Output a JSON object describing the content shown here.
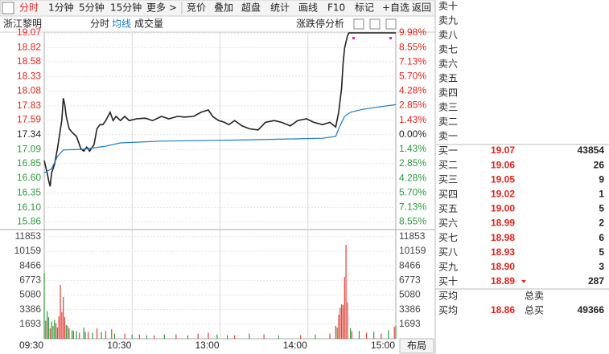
{
  "toolbar": [
    "分时",
    "1分钟",
    "5分钟",
    "15分钟",
    "更多 >",
    "竞价",
    "叠加",
    "超盘",
    "统计",
    "画线",
    "F10",
    "标记",
    "+自选",
    "返回"
  ],
  "panel_button": "涨跌停分析",
  "layout_button": "布局",
  "chart_data": {
    "type": "line",
    "title": "浙江黎明",
    "xlim": [
      0,
      240
    ],
    "xticks": [
      {
        "value": 0,
        "label": "09:30"
      },
      {
        "value": 60,
        "label": "10:30"
      },
      {
        "value": 120,
        "label": "13:00"
      },
      {
        "value": 180,
        "label": "14:00"
      },
      {
        "value": 240,
        "label": "15:00"
      }
    ],
    "ylim": [
      15.74,
      19.07
    ],
    "yticks": [
      19.07,
      18.82,
      18.58,
      18.33,
      18.08,
      17.83,
      17.59,
      17.34,
      17.09,
      16.85,
      {
        "value": 16.6,
        "label": "16.60"
      },
      16.35,
      {
        "value": 16.1,
        "label": "16.10"
      },
      15.86
    ],
    "y2lim": [
      -9.23,
      9.98
    ],
    "y2ticks": [
      {
        "value": 9.98,
        "label": "9.98%"
      },
      {
        "value": 8.55,
        "label": "8.55%"
      },
      {
        "value": 7.13,
        "label": "7.13%"
      },
      {
        "value": 5.7,
        "label": "5.70%"
      },
      {
        "value": 4.28,
        "label": "4.28%"
      },
      {
        "value": 2.85,
        "label": "2.85%"
      },
      {
        "value": 1.43,
        "label": "1.43%"
      },
      {
        "value": 0,
        "label": "0.00%"
      },
      {
        "value": -1.43,
        "label": "1.43%"
      },
      {
        "value": -2.85,
        "label": "2.85%"
      },
      {
        "value": -4.28,
        "label": "4.28%"
      },
      {
        "value": -5.7,
        "label": "5.70%"
      },
      {
        "value": -7.13,
        "label": "7.13%"
      },
      {
        "value": -8.55,
        "label": "8.55%"
      }
    ],
    "grid": true,
    "series": [
      {
        "name": "分时",
        "color": "#222222",
        "x": [
          0,
          2,
          3,
          4,
          5,
          7,
          9,
          12,
          13,
          14,
          15,
          17,
          19,
          22,
          25,
          27,
          29,
          31,
          34,
          36,
          38,
          40,
          42,
          45,
          47,
          49,
          52,
          55,
          58,
          63,
          69,
          74,
          80,
          85,
          91,
          96,
          102,
          107,
          112,
          115,
          119,
          123,
          126,
          130,
          135,
          140,
          146,
          151,
          157,
          162,
          168,
          173,
          179,
          184,
          190,
          195,
          199,
          201,
          203,
          204,
          205,
          207,
          208,
          240
        ],
        "values": [
          16.9,
          16.69,
          16.56,
          16.46,
          16.69,
          16.83,
          17.1,
          17.58,
          17.96,
          17.85,
          17.65,
          17.44,
          17.38,
          17.31,
          17.1,
          17.06,
          17.13,
          17.06,
          17.17,
          17.44,
          17.51,
          17.51,
          17.58,
          17.72,
          17.58,
          17.65,
          17.58,
          17.65,
          17.58,
          17.61,
          17.62,
          17.58,
          17.65,
          17.61,
          17.65,
          17.64,
          17.65,
          17.72,
          17.76,
          17.65,
          17.58,
          17.55,
          17.51,
          17.58,
          17.49,
          17.44,
          17.42,
          17.55,
          17.58,
          17.55,
          17.49,
          17.58,
          17.61,
          17.55,
          17.51,
          17.55,
          17.47,
          17.72,
          18.13,
          18.54,
          18.81,
          19.02,
          19.07,
          19.07
        ]
      },
      {
        "name": "均线",
        "color": "#1a7cc4",
        "x": [
          0,
          5,
          9,
          13,
          25,
          41,
          52,
          80,
          135,
          190,
          199,
          201,
          205,
          209,
          217,
          228,
          240
        ],
        "values": [
          16.69,
          16.76,
          16.97,
          17.08,
          17.09,
          17.14,
          17.2,
          17.23,
          17.25,
          17.28,
          17.31,
          17.44,
          17.65,
          17.72,
          17.77,
          17.81,
          17.85
        ]
      }
    ],
    "volume": {
      "name": "成交量",
      "ylim": [
        0,
        12580
      ],
      "yticks": [
        1693,
        3386,
        5080,
        6773,
        8466,
        10159,
        11853
      ],
      "up": {
        "color": "#e0413c",
        "x": [
          1,
          4,
          8,
          10,
          11,
          12,
          13,
          14,
          16,
          20,
          24,
          30,
          36,
          42,
          46,
          55,
          65,
          75,
          90,
          105,
          112,
          130,
          150,
          175,
          195,
          199,
          201,
          202,
          203,
          204,
          205,
          206,
          207,
          210,
          220,
          230,
          239
        ],
        "values": [
          2100,
          1200,
          1800,
          2600,
          6240,
          3100,
          4850,
          2500,
          1500,
          900,
          700,
          800,
          1200,
          900,
          1100,
          600,
          500,
          400,
          500,
          600,
          700,
          400,
          500,
          400,
          600,
          1500,
          2800,
          3600,
          4000,
          3900,
          7180,
          10900,
          4200,
          900,
          700,
          600,
          1400
        ]
      },
      "down": {
        "color": "#2e9a3c",
        "x": [
          0,
          2,
          3,
          5,
          6,
          7,
          9,
          15,
          17,
          19,
          22,
          27,
          28,
          33,
          39,
          48,
          60,
          70,
          82,
          98,
          118,
          125,
          140,
          160,
          185,
          200,
          209,
          215,
          225,
          235,
          240
        ],
        "values": [
          7640,
          3200,
          2500,
          2000,
          1500,
          2200,
          1300,
          1600,
          1200,
          1000,
          900,
          1300,
          800,
          700,
          800,
          600,
          500,
          400,
          500,
          400,
          500,
          400,
          600,
          400,
          500,
          1300,
          1200,
          900,
          800,
          1000,
          1500
        ]
      }
    }
  },
  "order_book": {
    "asks": [
      "卖十",
      "卖九",
      "卖八",
      "卖七",
      "卖六",
      "卖五",
      "卖四",
      "卖三",
      "卖二",
      "卖一"
    ],
    "bids": [
      {
        "label": "买一",
        "price": "19.07",
        "volume": 43854
      },
      {
        "label": "买二",
        "price": "19.06",
        "volume": 26
      },
      {
        "label": "买三",
        "price": "19.05",
        "volume": 9
      },
      {
        "label": "买四",
        "price": "19.02",
        "volume": 1
      },
      {
        "label": "买五",
        "price": "19.00",
        "volume": 5
      },
      {
        "label": "买六",
        "price": "18.99",
        "volume": 2
      },
      {
        "label": "买七",
        "price": "18.98",
        "volume": 6
      },
      {
        "label": "买八",
        "price": "18.93",
        "volume": 5
      },
      {
        "label": "买九",
        "price": "18.90",
        "volume": 3
      },
      {
        "label": "买十",
        "price": "18.89",
        "volume": 287
      }
    ],
    "summary": [
      {
        "label": "买均",
        "label2": "总卖"
      },
      {
        "label": "买均",
        "price": "18.86",
        "label2": "总买",
        "volume": 49366
      }
    ]
  }
}
